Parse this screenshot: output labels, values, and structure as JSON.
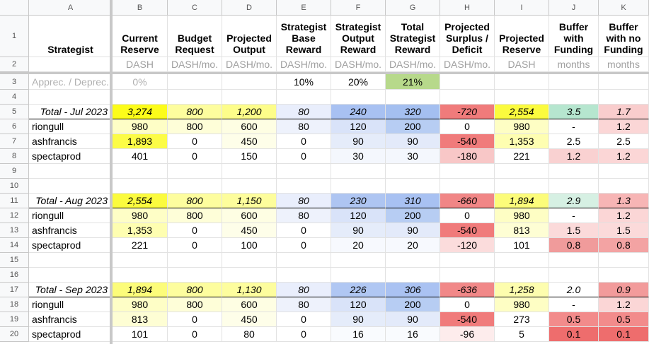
{
  "columns": [
    "A",
    "B",
    "C",
    "D",
    "E",
    "F",
    "G",
    "H",
    "I",
    "J",
    "K"
  ],
  "row_numbers": [
    "1",
    "2",
    "3",
    "4",
    "5",
    "6",
    "7",
    "8",
    "9",
    "10",
    "11",
    "12",
    "13",
    "14",
    "15",
    "16",
    "17",
    "18",
    "19",
    "20"
  ],
  "header": [
    "Strategist",
    "Current Reserve",
    "Budget Request",
    "Projected Output",
    "Strategist Base Reward",
    "Strategist Output Reward",
    "Total Strategist Reward",
    "Projected Surplus / Deficit",
    "Projected Reserve",
    "Buffer with Funding",
    "Buffer with no Funding"
  ],
  "units": [
    "",
    "DASH",
    "DASH/mo.",
    "DASH/mo.",
    "DASH/mo.",
    "DASH/mo.",
    "DASH/mo.",
    "DASH/mo.",
    "DASH",
    "months",
    "months"
  ],
  "row3": [
    "Apprec. / Deprec.",
    "0%",
    "",
    "",
    "10%",
    "20%",
    "21%",
    "",
    "",
    "",
    ""
  ],
  "rows": {
    "5": [
      "Total - Jul 2023",
      "3,274",
      "800",
      "1,200",
      "80",
      "240",
      "320",
      "-720",
      "2,554",
      "3.5",
      "1.7"
    ],
    "6": [
      "riongull",
      "980",
      "800",
      "600",
      "80",
      "120",
      "200",
      "0",
      "980",
      "-",
      "1.2"
    ],
    "7": [
      "ashfrancis",
      "1,893",
      "0",
      "450",
      "0",
      "90",
      "90",
      "-540",
      "1,353",
      "2.5",
      "2.5"
    ],
    "8": [
      "spectaprod",
      "401",
      "0",
      "150",
      "0",
      "30",
      "30",
      "-180",
      "221",
      "1.2",
      "1.2"
    ],
    "11": [
      "Total - Aug 2023",
      "2,554",
      "800",
      "1,150",
      "80",
      "230",
      "310",
      "-660",
      "1,894",
      "2.9",
      "1.3"
    ],
    "12": [
      "riongull",
      "980",
      "800",
      "600",
      "80",
      "120",
      "200",
      "0",
      "980",
      "-",
      "1.2"
    ],
    "13": [
      "ashfrancis",
      "1,353",
      "0",
      "450",
      "0",
      "90",
      "90",
      "-540",
      "813",
      "1.5",
      "1.5"
    ],
    "14": [
      "spectaprod",
      "221",
      "0",
      "100",
      "0",
      "20",
      "20",
      "-120",
      "101",
      "0.8",
      "0.8"
    ],
    "17": [
      "Total - Sep 2023",
      "1,894",
      "800",
      "1,130",
      "80",
      "226",
      "306",
      "-636",
      "1,258",
      "2.0",
      "0.9"
    ],
    "18": [
      "riongull",
      "980",
      "800",
      "600",
      "80",
      "120",
      "200",
      "0",
      "980",
      "-",
      "1.2"
    ],
    "19": [
      "ashfrancis",
      "813",
      "0",
      "450",
      "0",
      "90",
      "90",
      "-540",
      "273",
      "0.5",
      "0.5"
    ],
    "20": [
      "spectaprod",
      "101",
      "0",
      "80",
      "0",
      "16",
      "16",
      "-96",
      "5",
      "0.1",
      "0.1"
    ]
  },
  "fills": {
    "row3": [
      "",
      "",
      "",
      "",
      "",
      "",
      "#b7d98b",
      "",
      "",
      "",
      ""
    ],
    "5": [
      "",
      "#fcfc1a",
      "#fdfd9e",
      "#fdfd8a",
      "#e9eefc",
      "#a8c1f2",
      "#a4bff0",
      "#f07b7b",
      "#fbfb3e",
      "#b6e6cf",
      "#f9cdcd"
    ],
    "6": [
      "",
      "#fefec6",
      "#fefed8",
      "#fefee3",
      "#eef2fc",
      "#d9e3f9",
      "#b7cdf3",
      "#ffffff",
      "#fefec4",
      "#ffffff",
      "#fbd6d6"
    ],
    "7": [
      "",
      "#fcfc46",
      "#ffffff",
      "#fefee9",
      "#ffffff",
      "#e5ecfa",
      "#e3eafa",
      "#f07b7b",
      "#fefeb1",
      "#ffffff",
      "#ffffff"
    ],
    "8": [
      "",
      "#ffffff",
      "#ffffff",
      "#ffffff",
      "#ffffff",
      "#f4f7fd",
      "#f4f7fd",
      "#f8c7c7",
      "#ffffff",
      "#f9d1d1",
      "#fbd6d6"
    ],
    "11": [
      "",
      "#fbfb3e",
      "#fdfd9e",
      "#fdfd9c",
      "#e9eefc",
      "#aec5f2",
      "#a8c1f2",
      "#f18686",
      "#fcfc7a",
      "#d6f0e3",
      "#f7b5b5"
    ],
    "12": [
      "",
      "#fefec6",
      "#fefed8",
      "#fefee3",
      "#eef2fc",
      "#d9e3f9",
      "#b7cdf3",
      "#ffffff",
      "#fefec4",
      "#ffffff",
      "#fbd6d6"
    ],
    "13": [
      "",
      "#fefeb1",
      "#ffffff",
      "#fefee9",
      "#ffffff",
      "#e5ecfa",
      "#e3eafa",
      "#f07b7b",
      "#fefed4",
      "#fbdada",
      "#fbdada"
    ],
    "14": [
      "",
      "#ffffff",
      "#ffffff",
      "#ffffff",
      "#ffffff",
      "#f7f9fe",
      "#f7f9fe",
      "#fbdcdc",
      "#ffffff",
      "#f09b9b",
      "#f3a3a3"
    ],
    "17": [
      "",
      "#fcfc7a",
      "#fdfd9e",
      "#fdfd9e",
      "#e9eefc",
      "#b0c7f3",
      "#aac2f2",
      "#f18888",
      "#fdfdae",
      "#ffffff",
      "#f29b9b"
    ],
    "18": [
      "",
      "#fefec6",
      "#fefed8",
      "#fefee3",
      "#eef2fc",
      "#d9e3f9",
      "#b7cdf3",
      "#ffffff",
      "#fefec4",
      "#ffffff",
      "#fbd6d6"
    ],
    "19": [
      "",
      "#fefed4",
      "#ffffff",
      "#fefee9",
      "#ffffff",
      "#e5ecfa",
      "#e3eafa",
      "#f07b7b",
      "#ffffff",
      "#f28b8b",
      "#f28b8b"
    ],
    "20": [
      "",
      "#ffffff",
      "#ffffff",
      "#ffffff",
      "#ffffff",
      "#f9fbfe",
      "#f9fbfe",
      "#fdecec",
      "#ffffff",
      "#ee6d6d",
      "#ee6d6d"
    ]
  }
}
